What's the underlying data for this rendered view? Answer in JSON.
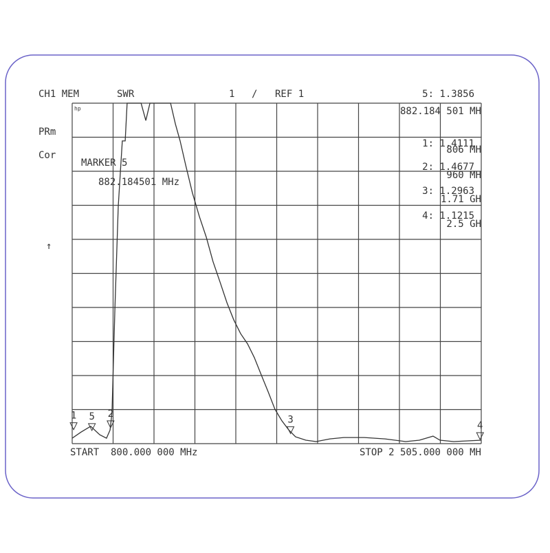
{
  "screen": {
    "channel": "CH1 MEM",
    "format": "SWR",
    "scale": "1",
    "slash": "/",
    "ref": "REF 1",
    "side": [
      "PRm",
      "Cor",
      "↑"
    ],
    "logo": "hp",
    "marker_title": "MARKER 5",
    "marker_freq": "882.184501 MHz",
    "start": "START  800.000 000 MHz",
    "stop": "STOP 2 505.000 000 MH"
  },
  "chart_data": {
    "type": "line",
    "grid": true,
    "color": "#333333",
    "xlim": [
      800,
      2505
    ],
    "ylim": [
      1,
      11
    ],
    "x": [
      800,
      837,
      877,
      915,
      943,
      958,
      966,
      978,
      992,
      1009,
      1021,
      1029,
      1087,
      1107,
      1124,
      1210,
      1230,
      1250,
      1273,
      1301,
      1330,
      1359,
      1387,
      1416,
      1445,
      1473,
      1502,
      1531,
      1559,
      1588,
      1617,
      1645,
      1674,
      1703,
      1731,
      1774,
      1817,
      1874,
      1932,
      2018,
      2104,
      2190,
      2247,
      2304,
      2333,
      2390,
      2505
    ],
    "values": [
      1.16,
      1.34,
      1.51,
      1.26,
      1.16,
      1.4,
      1.91,
      4.94,
      7.97,
      9.89,
      9.89,
      11,
      11,
      10.49,
      11,
      11,
      10.39,
      9.89,
      9.18,
      8.37,
      7.67,
      7.06,
      6.35,
      5.75,
      5.14,
      4.64,
      4.23,
      3.93,
      3.53,
      3.02,
      2.52,
      2.01,
      1.67,
      1.4,
      1.2,
      1.1,
      1.06,
      1.14,
      1.18,
      1.18,
      1.14,
      1.06,
      1.1,
      1.22,
      1.1,
      1.06,
      1.1
    ],
    "markers": [
      {
        "label": "5",
        "readout": "5: 1.3856",
        "freq_label": "882.184 501 MH",
        "x": 882.184501,
        "y": 1.3856
      },
      {
        "label": "1",
        "readout": "1: 1.4111",
        "freq_label": "806 MH",
        "x": 806,
        "y": 1.4111
      },
      {
        "label": "2",
        "readout": "2: 1.4677",
        "freq_label": "960 MH",
        "x": 960,
        "y": 1.4677
      },
      {
        "label": "3",
        "readout": "3: 1.2963",
        "freq_label": "1.71 GH",
        "x": 1710,
        "y": 1.2963
      },
      {
        "label": "4",
        "readout": "4: 1.1215",
        "freq_label": "2.5 GH",
        "x": 2500,
        "y": 1.1215
      }
    ]
  }
}
